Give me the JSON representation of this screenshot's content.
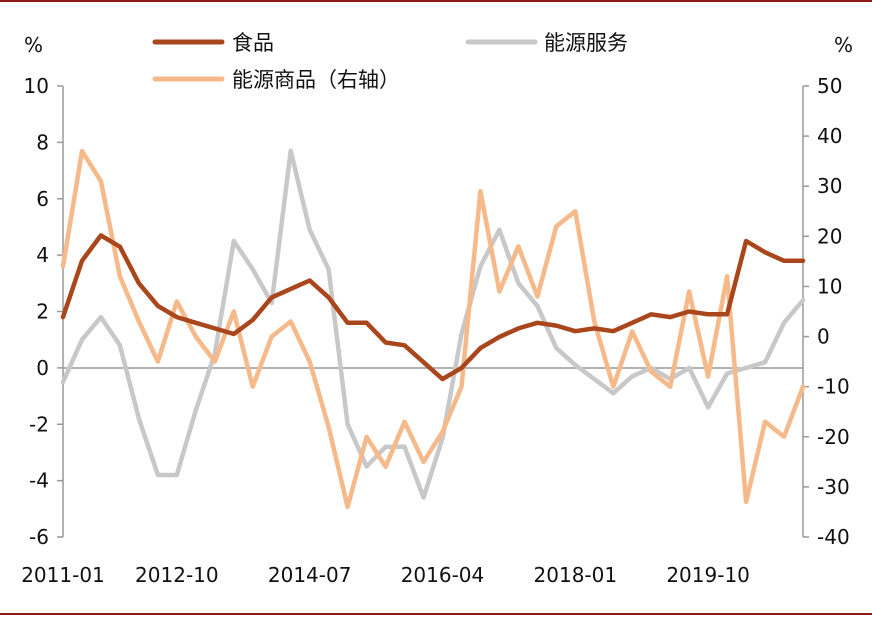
{
  "chart_data": {
    "type": "line",
    "title": "",
    "left_unit": "%",
    "right_unit": "%",
    "ylim_left": [
      -6,
      10
    ],
    "ylim_right": [
      -40,
      50
    ],
    "yticks_left": [
      "10",
      "8",
      "6",
      "4",
      "2",
      "0",
      "-2",
      "-4",
      "-6"
    ],
    "yticks_right": [
      "50",
      "40",
      "30",
      "20",
      "10",
      "0",
      "-10",
      "-20",
      "-30",
      "-40"
    ],
    "x_tick_labels": [
      "2011-01",
      "2012-10",
      "2014-07",
      "2016-04",
      "2018-01",
      "2019-10"
    ],
    "grid": false,
    "legend_placement": "top",
    "x": [
      "2011-01",
      "2011-07",
      "2011-10",
      "2012-01",
      "2012-04",
      "2012-07",
      "2012-10",
      "2013-01",
      "2013-04",
      "2013-07",
      "2013-10",
      "2014-01",
      "2014-04",
      "2014-07",
      "2014-10",
      "2015-01",
      "2015-04",
      "2015-07",
      "2015-10",
      "2016-01",
      "2016-04",
      "2016-07",
      "2016-10",
      "2017-01",
      "2017-04",
      "2017-07",
      "2017-10",
      "2018-01",
      "2018-04",
      "2018-07",
      "2018-10",
      "2019-01",
      "2019-04",
      "2019-07",
      "2019-10",
      "2020-01",
      "2020-04",
      "2020-07",
      "2020-10",
      "2021-01"
    ],
    "series": [
      {
        "name": "食品",
        "axis": "left",
        "color": "#a9461c",
        "values": [
          1.8,
          3.8,
          4.7,
          4.3,
          3.0,
          2.2,
          1.8,
          1.6,
          1.4,
          1.2,
          1.7,
          2.5,
          2.8,
          3.1,
          2.5,
          1.6,
          1.6,
          0.9,
          0.8,
          0.2,
          -0.4,
          0.0,
          0.7,
          1.1,
          1.4,
          1.6,
          1.5,
          1.3,
          1.4,
          1.3,
          1.6,
          1.9,
          1.8,
          2.0,
          1.9,
          1.9,
          4.5,
          4.1,
          3.8,
          3.8
        ]
      },
      {
        "name": "能源服务",
        "axis": "left",
        "color": "#c8c8c8",
        "values": [
          -0.5,
          1.0,
          1.8,
          0.8,
          -1.8,
          -3.8,
          -3.8,
          -1.5,
          0.5,
          4.5,
          3.5,
          2.3,
          7.7,
          4.9,
          3.5,
          -2.0,
          -3.5,
          -2.8,
          -2.8,
          -4.6,
          -2.5,
          1.2,
          3.6,
          4.9,
          3.0,
          2.2,
          0.7,
          0.1,
          -0.4,
          -0.9,
          -0.3,
          0.0,
          -0.4,
          0.0,
          -1.4,
          -0.2,
          0.0,
          0.2,
          1.6,
          2.4
        ]
      },
      {
        "name": "能源商品（右轴）",
        "axis": "right",
        "color": "#f5b98a",
        "values": [
          14,
          37,
          31,
          12,
          3,
          -5,
          7,
          0,
          -5,
          5,
          -10,
          0,
          3,
          -5,
          -18,
          -34,
          -20,
          -26,
          -17,
          -25,
          -19,
          -10,
          29,
          9,
          18,
          8,
          22,
          25,
          3,
          -10,
          1,
          -7,
          -10,
          9,
          -8,
          12,
          -33,
          -17,
          -20,
          -10
        ]
      }
    ]
  }
}
